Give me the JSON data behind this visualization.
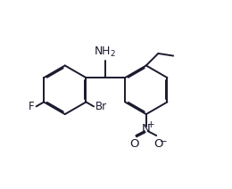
{
  "figsize": [
    2.6,
    2.12
  ],
  "dpi": 100,
  "bg_color": "#ffffff",
  "line_color": "#1a1a2e",
  "line_width": 1.4,
  "font_size": 8.5,
  "bond_color": "#1a1a2e",
  "xlim": [
    0,
    10
  ],
  "ylim": [
    0,
    8
  ]
}
